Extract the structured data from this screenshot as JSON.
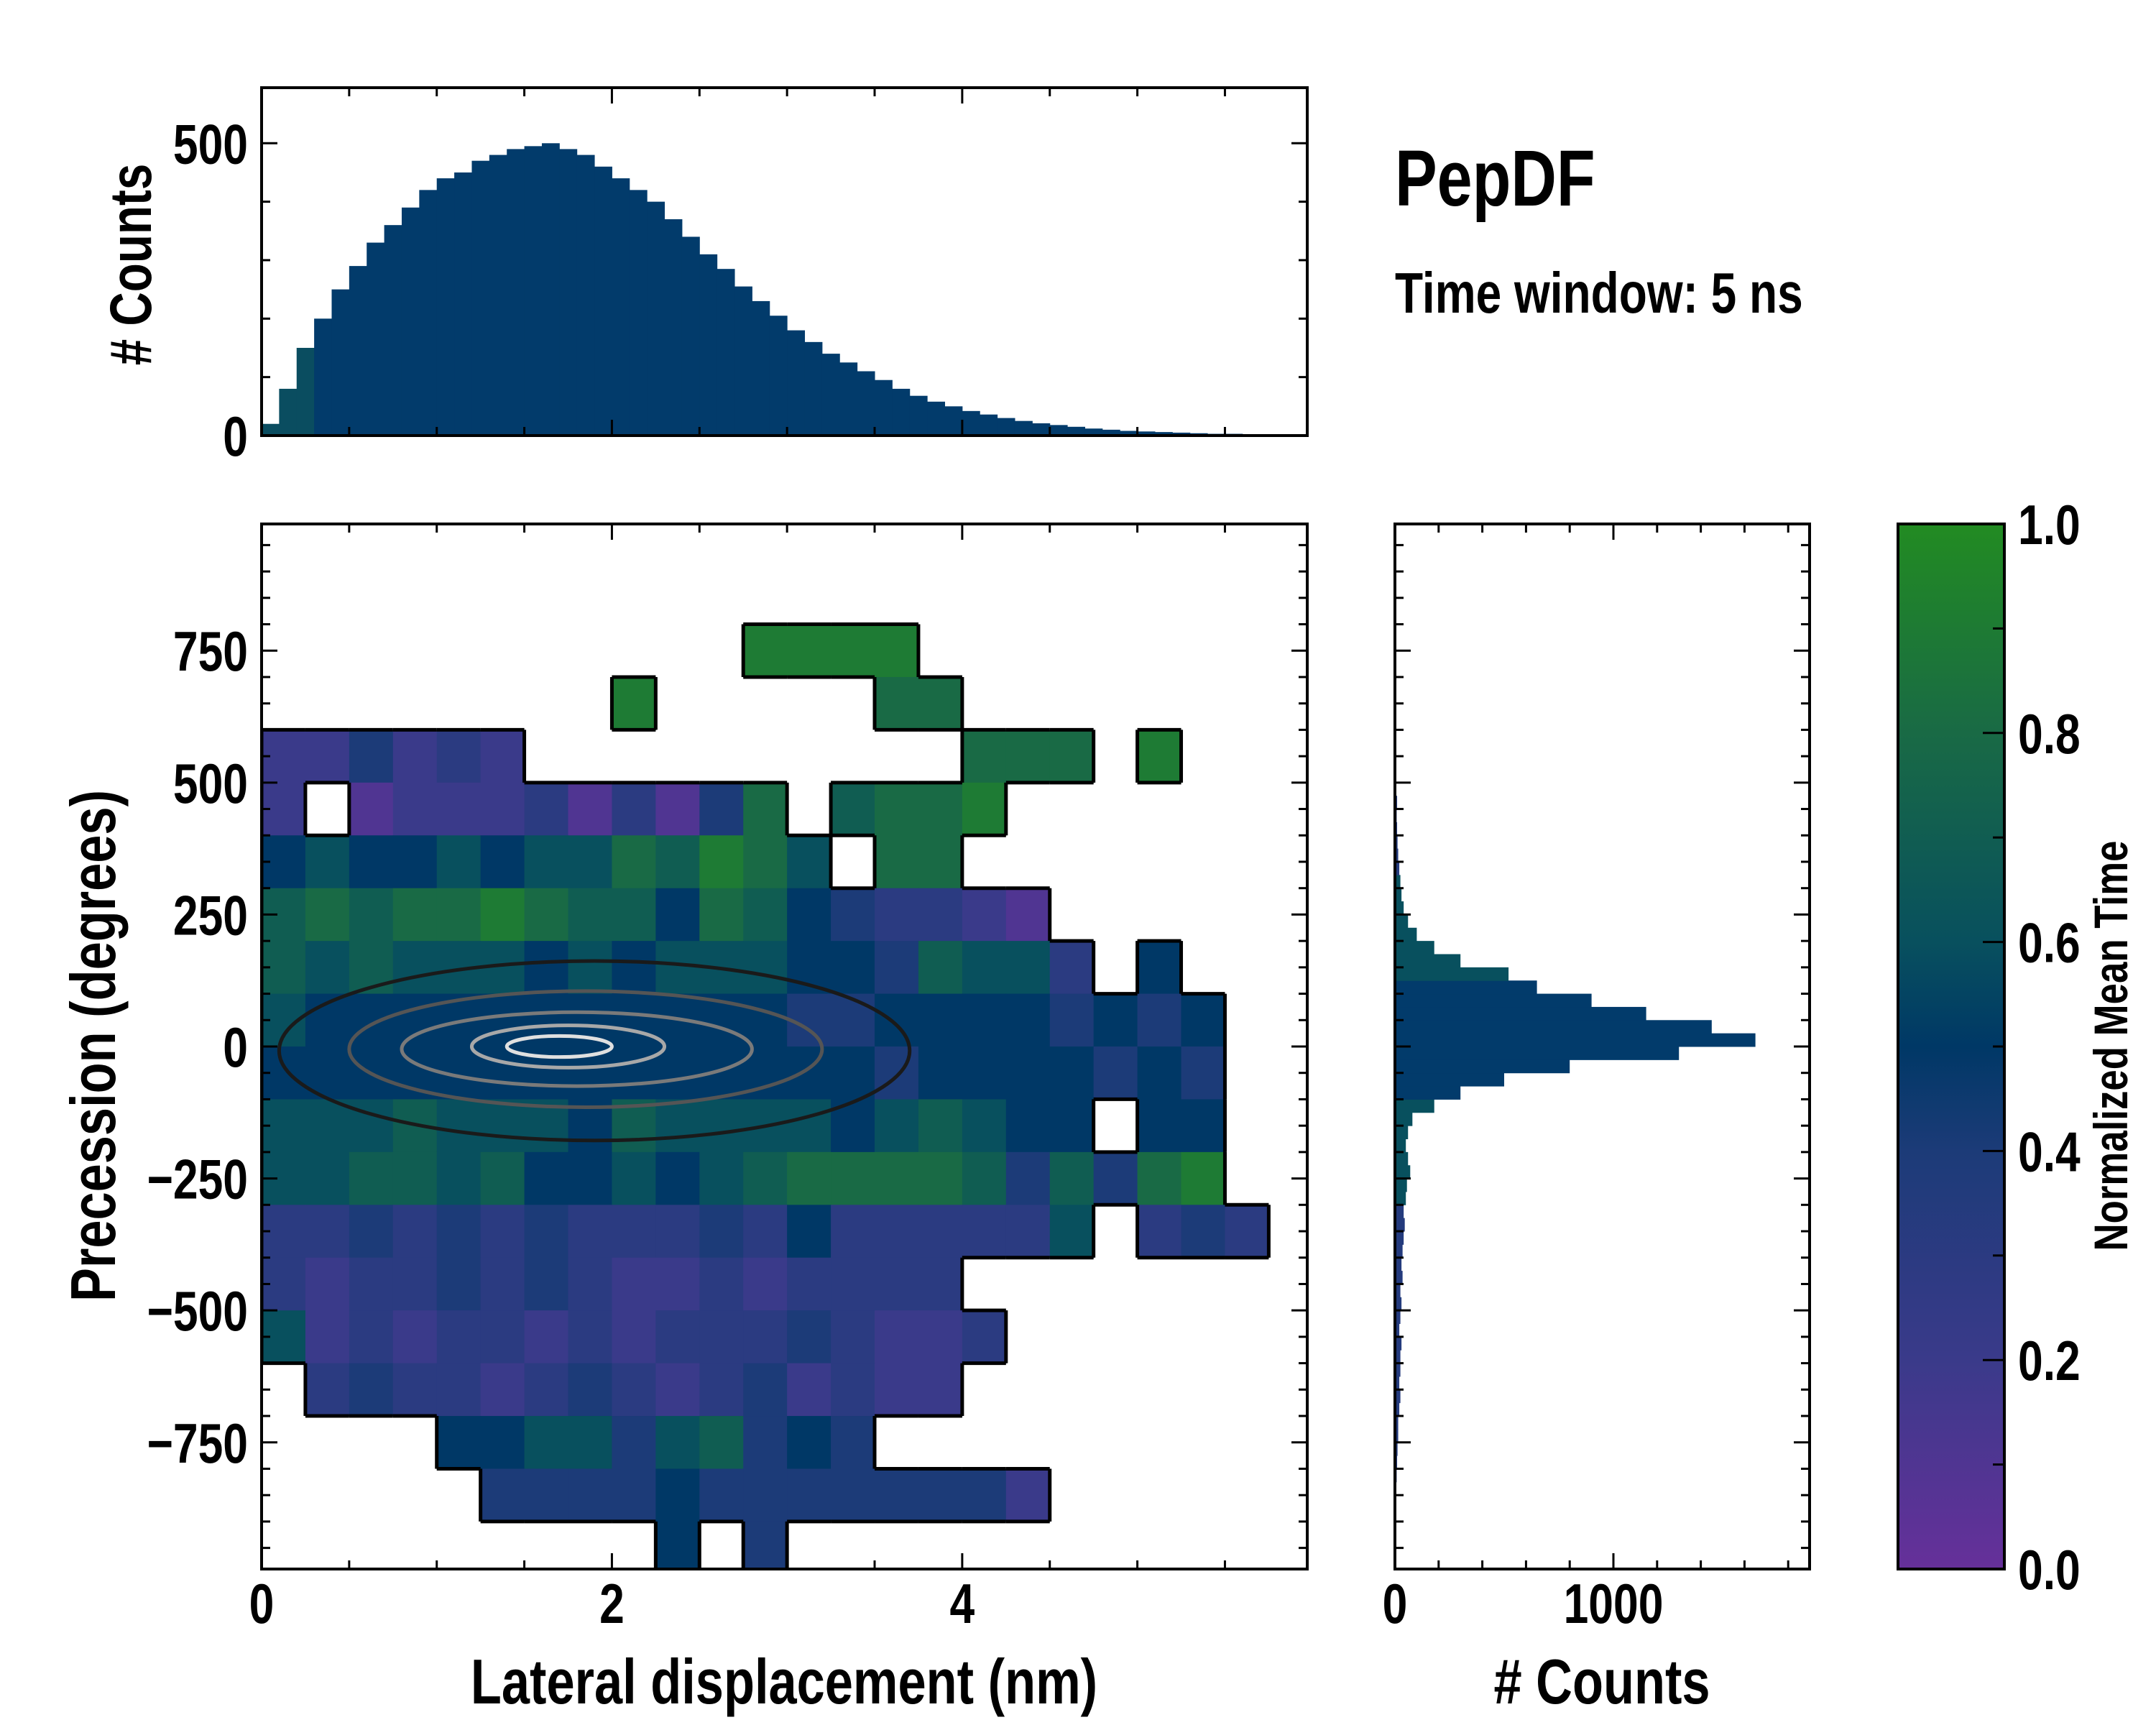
{
  "title": "PepDF",
  "subtitle": "Time window: 5 ns",
  "chart_data": [
    {
      "id": "top_histogram",
      "type": "bar",
      "ylabel": "# Counts",
      "xlim": [
        0,
        5.97
      ],
      "ylim": [
        0,
        595
      ],
      "yticks": [
        {
          "v": 0,
          "label": "0"
        },
        {
          "v": 500,
          "label": "500"
        }
      ],
      "bin_width": 0.1,
      "bin_start": 0,
      "bar_color": "#023b6b",
      "values": [
        20,
        80,
        150,
        200,
        250,
        290,
        330,
        360,
        390,
        420,
        440,
        450,
        470,
        480,
        490,
        495,
        500,
        490,
        480,
        460,
        440,
        420,
        400,
        370,
        340,
        310,
        285,
        255,
        230,
        205,
        180,
        160,
        140,
        125,
        110,
        95,
        80,
        68,
        58,
        50,
        42,
        36,
        30,
        25,
        21,
        18,
        15,
        12,
        10,
        8,
        7,
        6,
        5,
        4,
        3,
        3,
        2,
        2,
        2,
        1
      ]
    },
    {
      "id": "main_heatmap",
      "type": "heatmap",
      "xlabel": "Lateral displacement (nm)",
      "ylabel": "Precession (degrees)",
      "xlim": [
        0,
        5.97
      ],
      "ylim": [
        -990,
        990
      ],
      "xticks": [
        {
          "v": 0,
          "label": "0"
        },
        {
          "v": 2,
          "label": "2"
        },
        {
          "v": 4,
          "label": "4"
        }
      ],
      "yticks": [
        {
          "v": 750,
          "label": "750"
        },
        {
          "v": 500,
          "label": "500"
        },
        {
          "v": 250,
          "label": "250"
        },
        {
          "v": 0,
          "label": "0"
        },
        {
          "v": -250,
          "label": "−250"
        },
        {
          "v": -500,
          "label": "−500"
        },
        {
          "v": -750,
          "label": "−750"
        }
      ],
      "cell_x_width": 0.25,
      "cell_y_height": 100,
      "y_top": 1000,
      "value_encoding": "digit = normalized mean time x 10, '.' = empty",
      "rows": [
        "........................",
        "........................",
        "...........9999.........",
        "........9.....88........",
        "224232..........888.9...",
        "2.1222313148.7889.......",
        "5655656687986.88........",
        "787889877587543321......",
        "7676665656665547663.5...",
        "6555555555554455554545..",
        "5555555555555545555454..",
        "6667666576666567655.55..",
        "6677675565678888747489..",
        "3343434333435333336.343.",
        "3233434322323333........",
        "62323323233343223.......",
        ".343323432342322........",
        "....5566467454..........",
        ".....4444544444442......",
        ".........5.4............"
      ],
      "density_contours": [
        {
          "level": 1,
          "cx": 1.9,
          "cy": -8,
          "rx": 1.8,
          "ry": 170,
          "color": "#1a1a1a"
        },
        {
          "level": 2,
          "cx": 1.85,
          "cy": -5,
          "rx": 1.35,
          "ry": 110,
          "color": "#555555"
        },
        {
          "level": 3,
          "cx": 1.8,
          "cy": -5,
          "rx": 1.0,
          "ry": 70,
          "color": "#7a7a7a"
        },
        {
          "level": 4,
          "cx": 1.75,
          "cy": 0,
          "rx": 0.55,
          "ry": 40,
          "color": "#a8a8a8"
        },
        {
          "level": 5,
          "cx": 1.7,
          "cy": 0,
          "rx": 0.3,
          "ry": 20,
          "color": "#e0e0e0"
        }
      ]
    },
    {
      "id": "right_histogram",
      "type": "bar",
      "orientation": "horizontal",
      "xlabel": "# Counts",
      "xlim": [
        0,
        1898
      ],
      "ylim": [
        -990,
        990
      ],
      "xticks": [
        {
          "v": 0,
          "label": "0"
        },
        {
          "v": 1000,
          "label": "1000"
        }
      ],
      "bin_width": 25,
      "bin_start": -1000,
      "bar_color": "#023b6b",
      "values": [
        0,
        0,
        0,
        0,
        0,
        0,
        5,
        8,
        10,
        12,
        15,
        15,
        20,
        25,
        20,
        25,
        25,
        30,
        20,
        25,
        30,
        25,
        35,
        30,
        35,
        40,
        45,
        40,
        50,
        55,
        70,
        60,
        50,
        60,
        80,
        180,
        300,
        500,
        800,
        1300,
        1650,
        1450,
        1150,
        900,
        650,
        520,
        300,
        180,
        100,
        60,
        40,
        30,
        25,
        20,
        15,
        12,
        10,
        8,
        10,
        6,
        5,
        4,
        0,
        0,
        0,
        0,
        0,
        0,
        0,
        0,
        0,
        0,
        0,
        0,
        0,
        0,
        0,
        0,
        0,
        0
      ]
    },
    {
      "id": "colorbar",
      "type": "colorbar",
      "label": "Normalized Mean Time",
      "range": [
        0,
        1
      ],
      "ticks": [
        {
          "v": 0,
          "label": "0.0"
        },
        {
          "v": 0.2,
          "label": "0.2"
        },
        {
          "v": 0.4,
          "label": "0.4"
        },
        {
          "v": 0.6,
          "label": "0.6"
        },
        {
          "v": 0.8,
          "label": "0.8"
        },
        {
          "v": 1,
          "label": "1.0"
        }
      ],
      "colormap": [
        {
          "v": 0.0,
          "color": "#66309a"
        },
        {
          "v": 0.2,
          "color": "#3a3a8a"
        },
        {
          "v": 0.4,
          "color": "#1c3b78"
        },
        {
          "v": 0.5,
          "color": "#003866"
        },
        {
          "v": 0.6,
          "color": "#08505e"
        },
        {
          "v": 0.8,
          "color": "#196a45"
        },
        {
          "v": 1.0,
          "color": "#228b22"
        }
      ]
    }
  ]
}
